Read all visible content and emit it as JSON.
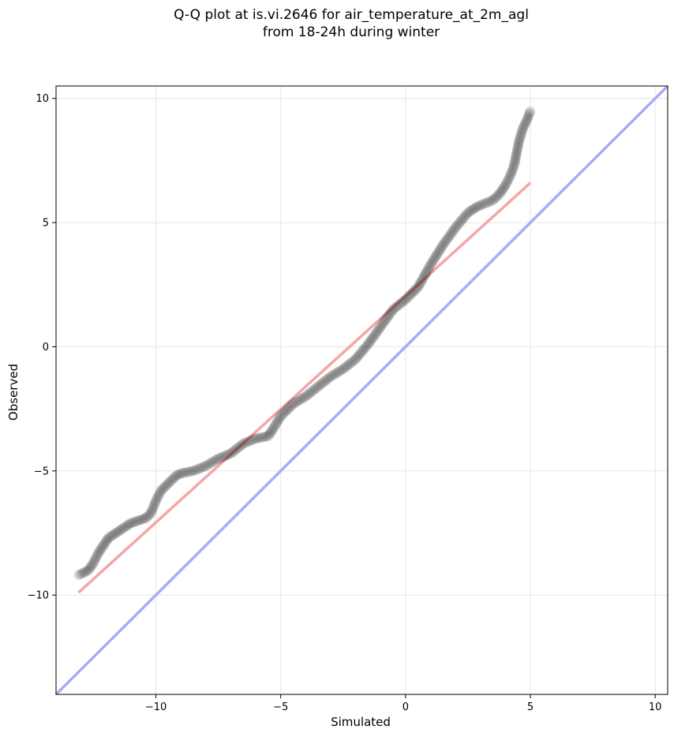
{
  "chart_data": {
    "type": "scatter",
    "title_line1": "Q-Q plot at is.vi.2646 for air_temperature_at_2m_agl",
    "title_line2": "from 18-24h during winter",
    "xlabel": "Simulated",
    "ylabel": "Observed",
    "xlim": [
      -14.0,
      10.5
    ],
    "ylim": [
      -14.0,
      10.5
    ],
    "xticks": [
      -10,
      -5,
      0,
      5,
      10
    ],
    "yticks": [
      -10,
      -5,
      0,
      5,
      10
    ],
    "xtick_labels": [
      "−10",
      "−5",
      "0",
      "5",
      "10"
    ],
    "ytick_labels": [
      "−10",
      "−5",
      "0",
      "5",
      "10"
    ],
    "grid": true,
    "colors": {
      "points": "#000000",
      "fit_line": "#f4a6a6",
      "identity_line": "#a9acf5",
      "grid": "#e6e6e6"
    },
    "qq_curve": {
      "x": [
        -13.1,
        -12.9,
        -12.7,
        -12.5,
        -12.3,
        -12.1,
        -11.9,
        -11.6,
        -11.3,
        -11.0,
        -10.7,
        -10.4,
        -10.2,
        -10.0,
        -9.8,
        -9.5,
        -9.2,
        -9.0,
        -8.5,
        -8.0,
        -7.5,
        -7.0,
        -6.5,
        -6.0,
        -5.5,
        -5.3,
        -5.0,
        -4.5,
        -4.0,
        -3.5,
        -3.0,
        -2.5,
        -2.0,
        -1.5,
        -1.0,
        -0.5,
        0.0,
        0.5,
        1.0,
        1.5,
        2.0,
        2.5,
        2.8,
        3.0,
        3.5,
        3.8,
        4.0,
        4.2,
        4.35,
        4.45,
        4.55,
        4.7,
        4.85,
        5.0
      ],
      "y": [
        -9.2,
        -9.1,
        -9.0,
        -8.7,
        -8.3,
        -8.0,
        -7.7,
        -7.5,
        -7.3,
        -7.1,
        -7.0,
        -6.9,
        -6.7,
        -6.2,
        -5.8,
        -5.5,
        -5.2,
        -5.1,
        -5.0,
        -4.8,
        -4.5,
        -4.3,
        -3.9,
        -3.7,
        -3.6,
        -3.3,
        -2.8,
        -2.3,
        -2.0,
        -1.6,
        -1.2,
        -0.9,
        -0.5,
        0.1,
        0.8,
        1.5,
        1.9,
        2.4,
        3.3,
        4.1,
        4.8,
        5.4,
        5.6,
        5.7,
        5.9,
        6.2,
        6.5,
        6.9,
        7.3,
        7.8,
        8.3,
        8.8,
        9.1,
        9.5
      ]
    },
    "fit_line": {
      "x": [
        -13.1,
        5.0
      ],
      "y": [
        -9.9,
        6.6
      ]
    },
    "identity_line": {
      "x": [
        -14.0,
        10.5
      ],
      "y": [
        -14.0,
        10.5
      ]
    }
  }
}
